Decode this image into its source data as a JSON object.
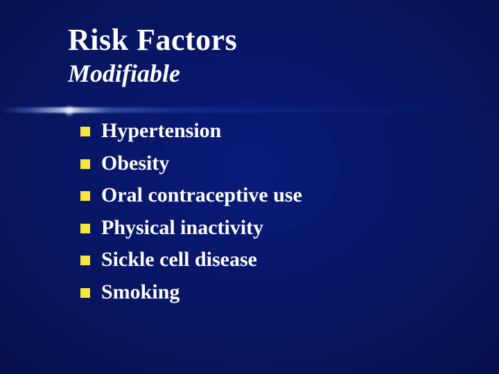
{
  "slide": {
    "title": "Risk Factors",
    "subtitle": "Modifiable",
    "title_color": "#fefefe",
    "subtitle_color": "#fefefe",
    "title_fontsize": 44,
    "subtitle_fontsize": 36,
    "bullet_fontsize": 30,
    "bullet_color": "#fefefe",
    "bullet_marker_color": "#f7e93a",
    "bullets": [
      "Hypertension",
      "Obesity",
      "Oral contraceptive use",
      "Physical inactivity",
      "Sickle cell disease",
      "Smoking"
    ]
  }
}
